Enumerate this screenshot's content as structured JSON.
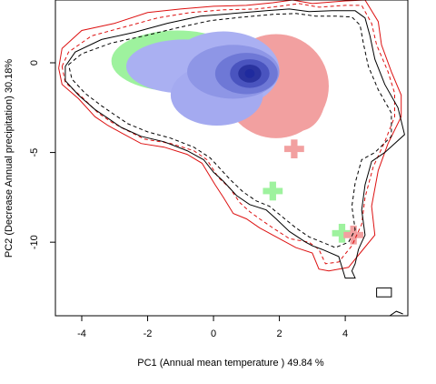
{
  "chart_data": {
    "type": "heatmap",
    "title": "",
    "xlabel": "PC1 (Annual mean temperature ) 49.84 %",
    "ylabel": "PC2 (Decrease Annual precipitation) 30.18%",
    "xlim": [
      -4.8,
      5.9
    ],
    "ylim": [
      -14.1,
      3.5
    ],
    "x_ticks": [
      -4,
      -2,
      0,
      2,
      4
    ],
    "y_ticks": [
      0,
      -5,
      -10
    ],
    "x_tick_labels": [
      "-4",
      "-2",
      "0",
      "2",
      "4"
    ],
    "y_tick_labels": [
      "0",
      "-5",
      "-10"
    ],
    "grid": false,
    "colors": {
      "red_envelope": "#dd1111",
      "black_envelope": "#000000",
      "overlap_density": "#1f2a9e",
      "green_only": "#9ef29e",
      "red_only": "#f2a0a0"
    },
    "density_peak": [
      1.1,
      -0.6
    ],
    "stray_cells": [
      {
        "x": 2.45,
        "y": -4.8,
        "group": "red"
      },
      {
        "x": 1.8,
        "y": -7.15,
        "group": "green"
      },
      {
        "x": 3.9,
        "y": -9.5,
        "group": "green"
      },
      {
        "x": 4.25,
        "y": -9.6,
        "group": "red"
      }
    ],
    "series": [
      {
        "style": "red-solid",
        "points": [
          [
            -4.7,
            -0.3
          ],
          [
            -4.6,
            0.8
          ],
          [
            -4.0,
            1.8
          ],
          [
            -3.0,
            2.2
          ],
          [
            -2.0,
            2.8
          ],
          [
            -1.0,
            3.0
          ],
          [
            0.0,
            3.15
          ],
          [
            1.0,
            3.2
          ],
          [
            1.8,
            3.35
          ],
          [
            2.4,
            3.5
          ],
          [
            3.0,
            3.3
          ],
          [
            4.0,
            3.45
          ],
          [
            4.6,
            3.5
          ],
          [
            5.0,
            2.3
          ],
          [
            5.1,
            1.0
          ],
          [
            5.4,
            -0.5
          ],
          [
            5.7,
            -1.8
          ],
          [
            5.7,
            -3.0
          ],
          [
            5.3,
            -4.5
          ],
          [
            5.0,
            -6.0
          ],
          [
            4.8,
            -8.0
          ],
          [
            4.9,
            -9.6
          ],
          [
            4.5,
            -10.5
          ],
          [
            4.1,
            -11.4
          ],
          [
            3.5,
            -11.6
          ],
          [
            3.2,
            -11.5
          ],
          [
            3.0,
            -10.6
          ],
          [
            2.5,
            -10.3
          ],
          [
            1.8,
            -9.6
          ],
          [
            1.4,
            -9.2
          ],
          [
            1.0,
            -8.7
          ],
          [
            0.6,
            -8.4
          ],
          [
            0.3,
            -7.5
          ],
          [
            0.05,
            -6.8
          ],
          [
            -0.35,
            -5.6
          ],
          [
            -0.8,
            -5.1
          ],
          [
            -1.5,
            -4.7
          ],
          [
            -2.2,
            -4.5
          ],
          [
            -2.8,
            -3.9
          ],
          [
            -3.2,
            -3.5
          ],
          [
            -3.6,
            -3.0
          ],
          [
            -4.1,
            -2.0
          ],
          [
            -4.6,
            -1.2
          ],
          [
            -4.7,
            -0.3
          ]
        ]
      },
      {
        "style": "red-dashed",
        "points": [
          [
            -4.6,
            -0.2
          ],
          [
            -4.4,
            0.6
          ],
          [
            -3.7,
            1.5
          ],
          [
            -2.7,
            2.0
          ],
          [
            -1.7,
            2.5
          ],
          [
            -0.7,
            2.8
          ],
          [
            0.3,
            2.95
          ],
          [
            1.3,
            3.0
          ],
          [
            2.0,
            3.15
          ],
          [
            2.6,
            3.3
          ],
          [
            3.2,
            3.1
          ],
          [
            4.0,
            3.2
          ],
          [
            4.5,
            3.2
          ],
          [
            4.8,
            2.2
          ],
          [
            4.95,
            1.0
          ],
          [
            5.3,
            -0.5
          ],
          [
            5.5,
            -1.7
          ],
          [
            5.5,
            -3.0
          ],
          [
            5.2,
            -4.4
          ],
          [
            4.85,
            -5.8
          ],
          [
            4.6,
            -7.5
          ],
          [
            4.5,
            -9.0
          ],
          [
            4.2,
            -10.2
          ],
          [
            3.8,
            -11.1
          ],
          [
            3.4,
            -11.2
          ],
          [
            3.2,
            -10.4
          ],
          [
            2.9,
            -10.0
          ],
          [
            2.3,
            -9.8
          ],
          [
            1.8,
            -9.2
          ],
          [
            1.4,
            -8.7
          ],
          [
            1.1,
            -8.3
          ],
          [
            0.8,
            -7.8
          ],
          [
            0.5,
            -7.0
          ],
          [
            0.15,
            -6.4
          ],
          [
            -0.2,
            -5.4
          ],
          [
            -0.6,
            -4.9
          ],
          [
            -1.3,
            -4.5
          ],
          [
            -2.1,
            -4.25
          ],
          [
            -2.7,
            -3.7
          ],
          [
            -3.1,
            -3.3
          ],
          [
            -3.5,
            -2.8
          ],
          [
            -4.0,
            -1.9
          ],
          [
            -4.5,
            -1.1
          ],
          [
            -4.6,
            -0.2
          ]
        ]
      },
      {
        "style": "black-solid",
        "points": [
          [
            -4.5,
            -0.2
          ],
          [
            -4.2,
            0.6
          ],
          [
            -3.4,
            1.3
          ],
          [
            -2.4,
            1.7
          ],
          [
            -1.4,
            2.2
          ],
          [
            -0.4,
            2.6
          ],
          [
            0.6,
            2.75
          ],
          [
            1.6,
            2.9
          ],
          [
            2.3,
            3.0
          ],
          [
            2.9,
            2.85
          ],
          [
            3.6,
            2.9
          ],
          [
            4.3,
            2.9
          ],
          [
            4.6,
            2.5
          ],
          [
            4.75,
            1.5
          ],
          [
            4.9,
            0.2
          ],
          [
            5.2,
            -1.2
          ],
          [
            5.6,
            -2.5
          ],
          [
            5.8,
            -4.0
          ],
          [
            5.2,
            -5.0
          ],
          [
            4.8,
            -5.5
          ],
          [
            4.6,
            -6.8
          ],
          [
            4.5,
            -8.2
          ],
          [
            4.6,
            -9.6
          ],
          [
            4.5,
            -10.0
          ],
          [
            4.4,
            -10.4
          ],
          [
            4.3,
            -11.2
          ],
          [
            4.2,
            -11.6
          ],
          [
            4.3,
            -12.0
          ],
          [
            4.0,
            -12.0
          ],
          [
            3.8,
            -10.8
          ],
          [
            3.3,
            -10.4
          ],
          [
            3.0,
            -10.2
          ],
          [
            2.8,
            -10.0
          ],
          [
            2.3,
            -9.4
          ],
          [
            1.9,
            -8.7
          ],
          [
            1.6,
            -8.2
          ],
          [
            1.1,
            -7.9
          ],
          [
            0.7,
            -7.4
          ],
          [
            0.3,
            -6.6
          ],
          [
            0.0,
            -6.1
          ],
          [
            -0.3,
            -5.4
          ],
          [
            -0.8,
            -4.9
          ],
          [
            -1.5,
            -4.4
          ],
          [
            -2.2,
            -4.1
          ],
          [
            -2.8,
            -3.6
          ],
          [
            -3.2,
            -3.1
          ],
          [
            -3.6,
            -2.6
          ],
          [
            -4.1,
            -1.8
          ],
          [
            -4.5,
            -1.0
          ],
          [
            -4.5,
            -0.2
          ]
        ]
      },
      {
        "style": "black-dashed",
        "points": [
          [
            -4.4,
            -0.1
          ],
          [
            -4.0,
            0.5
          ],
          [
            -3.1,
            1.1
          ],
          [
            -2.1,
            1.5
          ],
          [
            -1.1,
            1.95
          ],
          [
            -0.1,
            2.35
          ],
          [
            0.9,
            2.55
          ],
          [
            1.8,
            2.7
          ],
          [
            2.5,
            2.75
          ],
          [
            3.1,
            2.6
          ],
          [
            3.7,
            2.6
          ],
          [
            4.2,
            2.55
          ],
          [
            4.45,
            2.1
          ],
          [
            4.55,
            1.1
          ],
          [
            4.7,
            -0.2
          ],
          [
            5.0,
            -1.5
          ],
          [
            5.4,
            -2.8
          ],
          [
            5.4,
            -4.1
          ],
          [
            4.9,
            -5.0
          ],
          [
            4.5,
            -5.4
          ],
          [
            4.3,
            -6.7
          ],
          [
            4.2,
            -8.0
          ],
          [
            4.3,
            -9.3
          ],
          [
            4.1,
            -10.0
          ],
          [
            3.7,
            -10.3
          ],
          [
            3.3,
            -10.0
          ],
          [
            2.9,
            -9.7
          ],
          [
            2.5,
            -9.2
          ],
          [
            2.1,
            -8.6
          ],
          [
            1.7,
            -8.0
          ],
          [
            1.3,
            -7.7
          ],
          [
            0.9,
            -7.2
          ],
          [
            0.5,
            -6.5
          ],
          [
            0.2,
            -5.9
          ],
          [
            -0.1,
            -5.3
          ],
          [
            -0.6,
            -4.7
          ],
          [
            -1.3,
            -4.2
          ],
          [
            -2.0,
            -3.85
          ],
          [
            -2.6,
            -3.4
          ],
          [
            -3.0,
            -2.9
          ],
          [
            -3.4,
            -2.4
          ],
          [
            -3.9,
            -1.7
          ],
          [
            -4.3,
            -0.9
          ],
          [
            -4.4,
            -0.1
          ]
        ]
      },
      {
        "style": "black-solid-small",
        "points": [
          [
            4.95,
            -12.55
          ],
          [
            5.4,
            -12.55
          ],
          [
            5.4,
            -13.05
          ],
          [
            4.95,
            -13.05
          ],
          [
            4.95,
            -12.55
          ]
        ]
      },
      {
        "style": "black-solid-small",
        "points": [
          [
            5.35,
            -14.1
          ],
          [
            5.55,
            -13.85
          ],
          [
            5.75,
            -14.0
          ]
        ]
      }
    ]
  },
  "axes": {
    "xlabel": "PC1 (Annual mean temperature ) 49.84 %",
    "ylabel": "PC2 (Decrease Annual precipitation) 30.18%"
  }
}
